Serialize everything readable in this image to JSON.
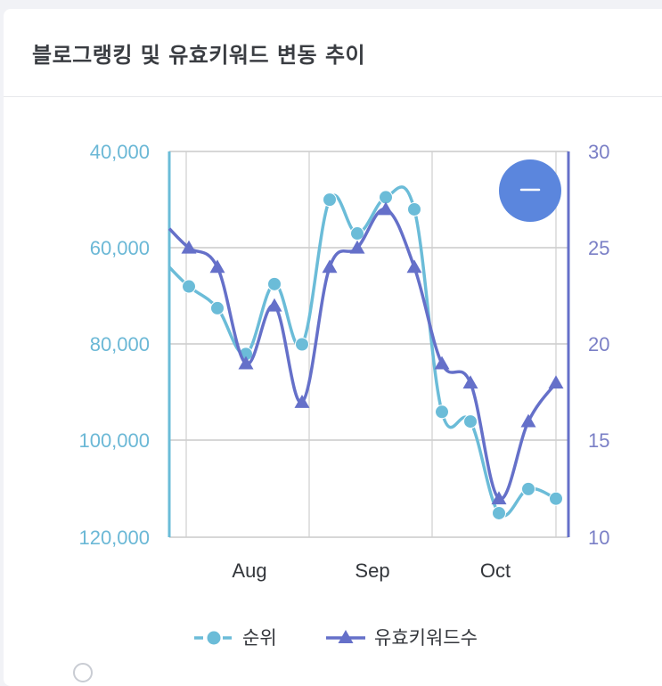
{
  "card": {
    "title": "블로그랭킹 및 유효키워드 변동 추이"
  },
  "colors": {
    "rank": "#6bbcd8",
    "keywords": "#6570c9",
    "button": "#5b86dd",
    "grid": "#bfbfbf"
  },
  "zoom_button": {
    "icon": "minus-icon",
    "symbol": "–"
  },
  "chart_data": {
    "type": "line",
    "x_categories": [
      "Aug",
      "Sep",
      "Oct"
    ],
    "y_left": {
      "reversed": true,
      "range": [
        40000,
        120000
      ],
      "ticks": [
        "40,000",
        "60,000",
        "80,000",
        "100,000",
        "120,000"
      ]
    },
    "y_right": {
      "range": [
        10,
        30
      ],
      "ticks": [
        "30",
        "25",
        "20",
        "15",
        "10"
      ]
    },
    "series": [
      {
        "name": "순위",
        "axis": "left",
        "marker": "circle",
        "dashed_legend": true,
        "values": [
          64000,
          68000,
          72500,
          82000,
          67500,
          80000,
          50000,
          57000,
          49500,
          52000,
          94000,
          96000,
          115000,
          110000,
          112000
        ],
        "x_start": null
      },
      {
        "name": "유효키워드수",
        "axis": "right",
        "marker": "triangle",
        "values": [
          25,
          24,
          19,
          22,
          17,
          24,
          25,
          27,
          24,
          19,
          18,
          12,
          16,
          18
        ],
        "x_start": null
      }
    ],
    "grid": true,
    "legend_position": "bottom"
  }
}
